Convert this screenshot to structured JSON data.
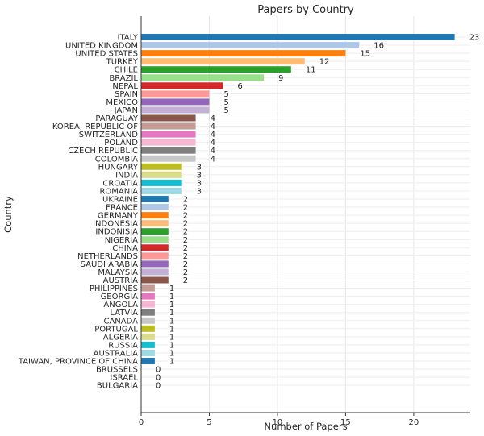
{
  "chart_data": {
    "type": "bar",
    "orientation": "horizontal",
    "title": "Papers by Country",
    "xlabel": "Number of Papers",
    "ylabel": "Country",
    "xlim": [
      0,
      24.15
    ],
    "xticks": [
      0,
      5,
      10,
      15,
      20
    ],
    "grid": true,
    "categories": [
      "ITALY",
      "UNITED KINGDOM",
      "UNITED STATES",
      "TURKEY",
      "CHILE",
      "BRAZIL",
      "NEPAL",
      "SPAIN",
      "MEXICO",
      "JAPAN",
      "PARAGUAY",
      "KOREA, REPUBLIC OF",
      "SWITZERLAND",
      "POLAND",
      "CZECH REPUBLIC",
      "COLOMBIA",
      "HUNGARY",
      "INDIA",
      "CROATIA",
      "ROMANIA",
      "UKRAINE",
      "FRANCE",
      "GERMANY",
      "INDONESIA",
      "INDONISIA",
      "NIGERIA",
      "CHINA",
      "NETHERLANDS",
      "SAUDI ARABIA",
      "MALAYSIA",
      "AUSTRIA",
      "PHILIPPINES",
      "GEORGIA",
      "ANGOLA",
      "LATVIA",
      "CANADA",
      "PORTUGAL",
      "ALGERIA",
      "RUSSIA",
      "AUSTRALIA",
      "TAIWAN, PROVINCE OF CHINA",
      "BRUSSELS",
      "ISRAEL",
      "BULGARIA"
    ],
    "values": [
      23,
      16,
      15,
      12,
      11,
      9,
      6,
      5,
      5,
      5,
      4,
      4,
      4,
      4,
      4,
      4,
      3,
      3,
      3,
      3,
      2,
      2,
      2,
      2,
      2,
      2,
      2,
      2,
      2,
      2,
      2,
      1,
      1,
      1,
      1,
      1,
      1,
      1,
      1,
      1,
      1,
      0,
      0,
      0
    ],
    "colors": [
      "#1f77b4",
      "#aec7e8",
      "#ff7f0e",
      "#ffbb78",
      "#2ca02c",
      "#98df8a",
      "#d62728",
      "#ff9896",
      "#9467bd",
      "#c5b0d5",
      "#8c564b",
      "#c49c94",
      "#e377c2",
      "#f7b6d2",
      "#7f7f7f",
      "#c7c7c7",
      "#bcbd22",
      "#dbdb8d",
      "#17becf",
      "#9edae5"
    ]
  }
}
